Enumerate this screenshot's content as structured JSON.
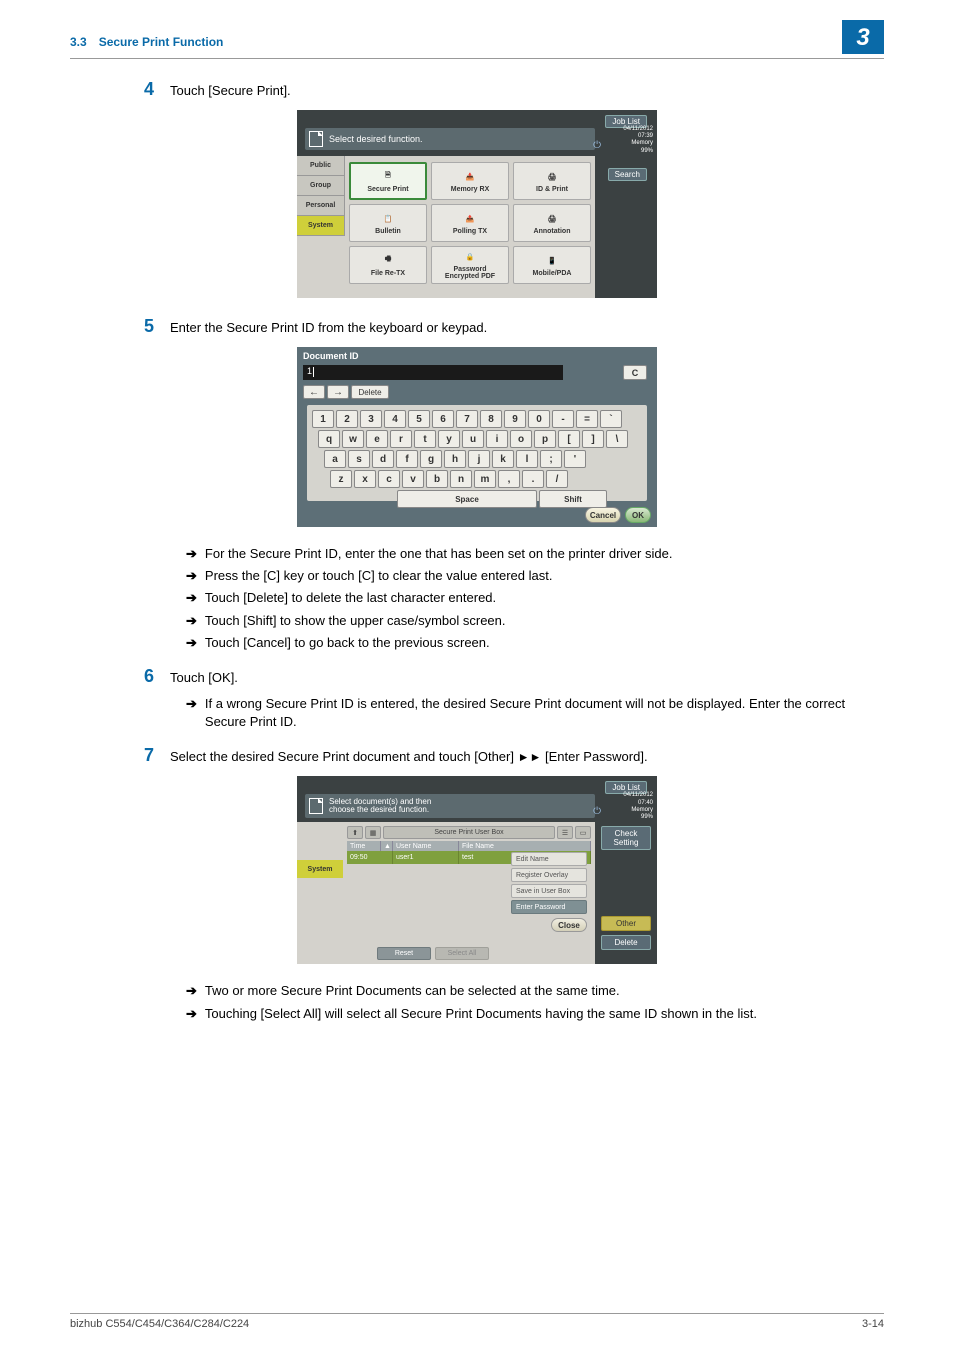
{
  "header": {
    "section_number": "3.3",
    "section_title": "Secure Print Function",
    "chapter_badge": "3"
  },
  "steps": {
    "s4": {
      "num": "4",
      "text": "Touch [Secure Print]."
    },
    "s5": {
      "num": "5",
      "text": "Enter the Secure Print ID from the keyboard or keypad."
    },
    "s5_subs": {
      "a": "For the Secure Print ID, enter the one that has been set on the printer driver side.",
      "b": "Press the [C] key or touch [C] to clear the value entered last.",
      "c": "Touch [Delete] to delete the last character entered.",
      "d": "Touch [Shift] to show the upper case/symbol screen.",
      "e": "Touch [Cancel] to go back to the previous screen."
    },
    "s6": {
      "num": "6",
      "text": "Touch [OK]."
    },
    "s6_subs": {
      "a": "If a wrong Secure Print ID is entered, the desired Secure Print document will not be displayed. Enter the correct Secure Print ID."
    },
    "s7": {
      "num": "7",
      "text_pre": "Select the desired Secure Print document and touch [Other] ",
      "text_post": " [Enter Password]."
    },
    "s7_subs": {
      "a": "Two or more Secure Print Documents can be selected at the same time.",
      "b": "Touching [Select All] will select all Secure Print Documents having the same ID shown in the list."
    }
  },
  "screenshot1": {
    "job_list": "Job List",
    "header_text": "Select desired function.",
    "date": "04/11/2012",
    "time": "07:39",
    "memory": "Memory",
    "mem_pct": "99%",
    "tabs": {
      "public": "Public",
      "group": "Group",
      "personal": "Personal",
      "system": "System"
    },
    "cells": {
      "secure_print": "Secure Print",
      "memory_rx": "Memory RX",
      "id_print": "ID & Print",
      "bulletin": "Bulletin",
      "polling_tx": "Polling TX",
      "annotation": "Annotation",
      "file_retx": "File Re-TX",
      "encrypted_pdf": "Password\nEncrypted PDF",
      "mobile_pda": "Mobile/PDA"
    },
    "search": "Search"
  },
  "screenshot2": {
    "title": "Document ID",
    "input_value": "1",
    "c_button": "C",
    "nav_left": "←",
    "nav_right": "→",
    "delete": "Delete",
    "rows": {
      "r1": [
        "1",
        "2",
        "3",
        "4",
        "5",
        "6",
        "7",
        "8",
        "9",
        "0",
        "-",
        "=",
        "`"
      ],
      "r2": [
        "q",
        "w",
        "e",
        "r",
        "t",
        "y",
        "u",
        "i",
        "o",
        "p",
        "[",
        "]",
        "\\"
      ],
      "r3": [
        "a",
        "s",
        "d",
        "f",
        "g",
        "h",
        "j",
        "k",
        "l",
        ";",
        "'"
      ],
      "r4": [
        "z",
        "x",
        "c",
        "v",
        "b",
        "n",
        "m",
        ",",
        ".",
        "/"
      ]
    },
    "space": "Space",
    "shift": "Shift",
    "cancel": "Cancel",
    "ok": "OK"
  },
  "screenshot3": {
    "job_list": "Job List",
    "header_text": "Select document(s) and then\nchoose the desired function.",
    "date": "04/11/2012",
    "time": "07:40",
    "memory": "Memory",
    "mem_pct": "99%",
    "right_buttons": {
      "check": "Check Setting",
      "other": "Other",
      "delete": "Delete"
    },
    "system_tab": "System",
    "box_title": "Secure Print User Box",
    "columns": {
      "time": "Time",
      "user_sort": "▲",
      "user": "User Name",
      "file": "File Name"
    },
    "row": {
      "time": "09:50",
      "user": "user1",
      "file": "test"
    },
    "menu": {
      "edit_name": "Edit Name",
      "register_overlay": "Register Overlay",
      "save_box": "Save in User Box",
      "enter_password": "Enter Password"
    },
    "close": "Close",
    "reset": "Reset",
    "select_all": "Select All"
  },
  "footer": {
    "model": "bizhub C554/C454/C364/C284/C224",
    "page": "3-14"
  },
  "colors": {
    "accent": "#0a6aa8",
    "ss_bg_dark": "#3b4142",
    "ss_bg_mid": "#5d6f77",
    "ss_panel": "#d4d2cc",
    "ss_active_tab": "#cfcf3a",
    "ss_row_selected": "#7fa03e"
  }
}
